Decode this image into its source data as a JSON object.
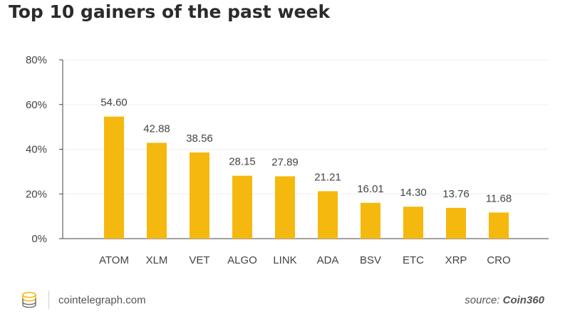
{
  "chart_data": {
    "type": "bar",
    "title": "Top 10 gainers of the past week",
    "categories": [
      "ATOM",
      "XLM",
      "VET",
      "ALGO",
      "LINK",
      "ADA",
      "BSV",
      "ETC",
      "XRP",
      "CRO"
    ],
    "values": [
      54.6,
      42.88,
      38.56,
      28.15,
      27.89,
      21.21,
      16.01,
      14.3,
      13.76,
      11.68
    ],
    "value_labels": [
      "54.60",
      "42.88",
      "38.56",
      "28.15",
      "27.89",
      "21.21",
      "16.01",
      "14.30",
      "13.76",
      "11.68"
    ],
    "yticks": [
      0,
      20,
      40,
      60,
      80
    ],
    "ytick_labels": [
      "0%",
      "20%",
      "40%",
      "60%",
      "80%"
    ],
    "ylim": [
      0,
      80
    ],
    "xlabel": "",
    "ylabel": "",
    "grid": true,
    "bar_color": "#f5b80e"
  },
  "footer": {
    "site": "cointelegraph.com",
    "source_prefix": "source: ",
    "source_name": "Coin360"
  },
  "colors": {
    "bar": "#f5b80e",
    "grid": "#eeeeee",
    "axis": "#444444",
    "text": "#444444"
  }
}
